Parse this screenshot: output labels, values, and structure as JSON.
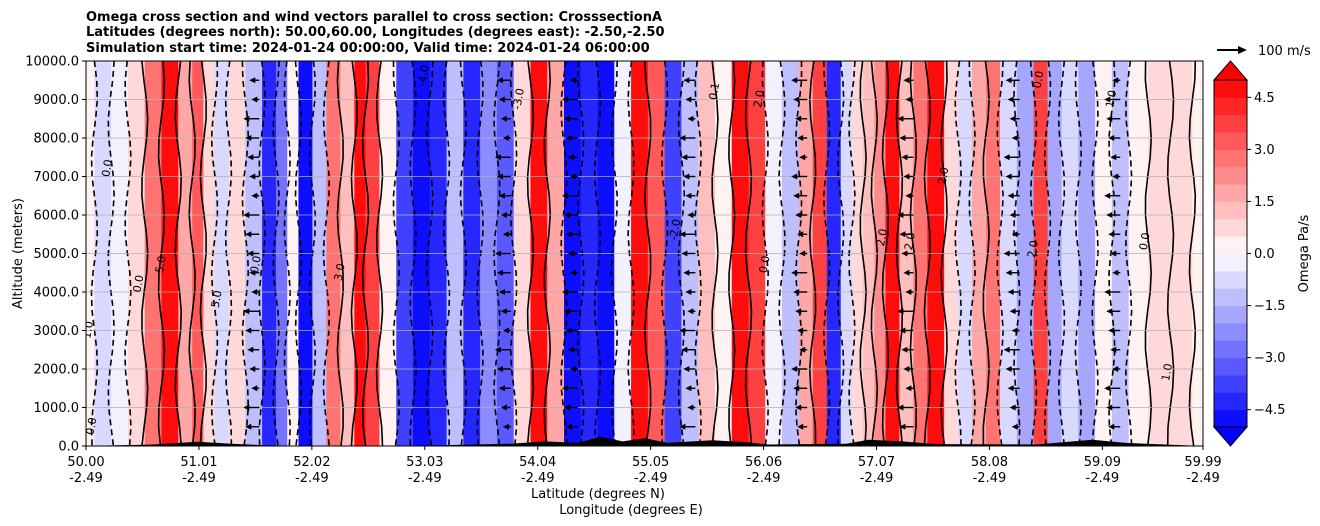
{
  "chart_data": {
    "type": "heatmap",
    "title_lines": [
      "Omega cross section and wind vectors parallel to cross section: CrosssectionA",
      "Latitudes (degrees north): 50.00,60.00, Longitudes (degrees east): -2.50,-2.50",
      "Simulation start time: 2024-01-24 00:00:00, Valid time: 2024-01-24 06:00:00"
    ],
    "ylabel": "Altitude (meters)",
    "xlabel_lines": [
      "Latitude (degrees N)",
      "Longitude (degrees E)"
    ],
    "ylim": [
      0,
      10000
    ],
    "yticks": [
      0,
      1000,
      2000,
      3000,
      4000,
      5000,
      6000,
      7000,
      8000,
      9000,
      10000
    ],
    "ytick_labels": [
      "0.0",
      "1000.0",
      "2000.0",
      "3000.0",
      "4000.0",
      "5000.0",
      "6000.0",
      "7000.0",
      "8000.0",
      "9000.0",
      "10000.0"
    ],
    "xlim": [
      50.0,
      59.99
    ],
    "xticks": [
      50.0,
      51.01,
      52.02,
      53.03,
      54.04,
      55.05,
      56.06,
      57.07,
      58.08,
      59.09,
      59.99
    ],
    "xtick_labels_lat": [
      "50.00",
      "51.01",
      "52.02",
      "53.03",
      "54.04",
      "55.05",
      "56.06",
      "57.07",
      "58.08",
      "59.09",
      "59.99"
    ],
    "xtick_labels_lon": [
      "-2.49",
      "-2.49",
      "-2.49",
      "-2.49",
      "-2.49",
      "-2.49",
      "-2.49",
      "-2.49",
      "-2.49",
      "-2.49",
      "-2.49"
    ],
    "grid": "horizontal",
    "colorbar": {
      "label": "Omega Pa/s",
      "range": [
        -5,
        5
      ],
      "extend": "both",
      "ticks": [
        4.5,
        3.0,
        1.5,
        0.0,
        -1.5,
        -3.0,
        -4.5
      ],
      "tick_labels": [
        "4.5",
        "3.0",
        "1.5",
        "0.0",
        "−1.5",
        "−3.0",
        "−4.5"
      ],
      "colormap": "bwr",
      "low_color": "#0000ff",
      "mid_color": "#ffffff",
      "high_color": "#ff0000"
    },
    "quiver_key": {
      "label": "100 m/s"
    },
    "omega_bands": [
      {
        "x": 50.0,
        "v": 0.3
      },
      {
        "x": 50.15,
        "v": -0.8
      },
      {
        "x": 50.3,
        "v": -0.3
      },
      {
        "x": 50.45,
        "v": 0.8
      },
      {
        "x": 50.6,
        "v": 2.5
      },
      {
        "x": 50.75,
        "v": 5.0
      },
      {
        "x": 50.9,
        "v": 1.5
      },
      {
        "x": 51.0,
        "v": 3.2
      },
      {
        "x": 51.1,
        "v": 0.5
      },
      {
        "x": 51.2,
        "v": -0.8
      },
      {
        "x": 51.35,
        "v": 0.8
      },
      {
        "x": 51.5,
        "v": -1.5
      },
      {
        "x": 51.65,
        "v": -4.5
      },
      {
        "x": 51.75,
        "v": -3.0
      },
      {
        "x": 51.85,
        "v": 0.4
      },
      {
        "x": 51.95,
        "v": -5.0
      },
      {
        "x": 52.1,
        "v": -1.5
      },
      {
        "x": 52.2,
        "v": 2.5
      },
      {
        "x": 52.35,
        "v": 1.0
      },
      {
        "x": 52.45,
        "v": 5.0
      },
      {
        "x": 52.55,
        "v": 3.5
      },
      {
        "x": 52.7,
        "v": 0.3
      },
      {
        "x": 52.85,
        "v": -3.8
      },
      {
        "x": 53.0,
        "v": -5.0
      },
      {
        "x": 53.15,
        "v": -4.2
      },
      {
        "x": 53.3,
        "v": -1.5
      },
      {
        "x": 53.45,
        "v": -4.5
      },
      {
        "x": 53.6,
        "v": -2.5
      },
      {
        "x": 53.75,
        "v": -3.5
      },
      {
        "x": 53.9,
        "v": 0.5
      },
      {
        "x": 54.05,
        "v": 5.0
      },
      {
        "x": 54.2,
        "v": 1.5
      },
      {
        "x": 54.35,
        "v": -5.0
      },
      {
        "x": 54.5,
        "v": -4.5
      },
      {
        "x": 54.65,
        "v": -5.0
      },
      {
        "x": 54.8,
        "v": -0.5
      },
      {
        "x": 54.95,
        "v": 4.8
      },
      {
        "x": 55.1,
        "v": 3.0
      },
      {
        "x": 55.25,
        "v": -4.0
      },
      {
        "x": 55.4,
        "v": -1.5
      },
      {
        "x": 55.55,
        "v": 1.0
      },
      {
        "x": 55.7,
        "v": 0.3
      },
      {
        "x": 55.85,
        "v": 5.0
      },
      {
        "x": 56.0,
        "v": 3.8
      },
      {
        "x": 56.15,
        "v": -0.5
      },
      {
        "x": 56.3,
        "v": -1.5
      },
      {
        "x": 56.45,
        "v": 1.8
      },
      {
        "x": 56.55,
        "v": 3.5
      },
      {
        "x": 56.7,
        "v": -4.5
      },
      {
        "x": 56.8,
        "v": -1.0
      },
      {
        "x": 56.9,
        "v": 0.6
      },
      {
        "x": 57.0,
        "v": 1.2
      },
      {
        "x": 57.1,
        "v": 2.0
      },
      {
        "x": 57.2,
        "v": 4.8
      },
      {
        "x": 57.35,
        "v": 1.0
      },
      {
        "x": 57.45,
        "v": 2.5
      },
      {
        "x": 57.6,
        "v": 5.0
      },
      {
        "x": 57.75,
        "v": 0.5
      },
      {
        "x": 57.85,
        "v": -0.8
      },
      {
        "x": 58.0,
        "v": 1.5
      },
      {
        "x": 58.1,
        "v": 2.5
      },
      {
        "x": 58.25,
        "v": -0.6
      },
      {
        "x": 58.4,
        "v": -1.8
      },
      {
        "x": 58.55,
        "v": 3.5
      },
      {
        "x": 58.65,
        "v": -2.0
      },
      {
        "x": 58.8,
        "v": -0.6
      },
      {
        "x": 58.95,
        "v": -1.8
      },
      {
        "x": 59.1,
        "v": 0.3
      },
      {
        "x": 59.25,
        "v": -1.2
      },
      {
        "x": 59.4,
        "v": 0.4
      },
      {
        "x": 59.6,
        "v": 0.6
      },
      {
        "x": 59.8,
        "v": 0.8
      },
      {
        "x": 59.99,
        "v": 0.4
      }
    ],
    "contour_labels": [
      {
        "x": 50.08,
        "y": 500,
        "text": "0.0"
      },
      {
        "x": 50.05,
        "y": 3000,
        "text": "1.0"
      },
      {
        "x": 50.22,
        "y": 7200,
        "text": "0.0"
      },
      {
        "x": 50.5,
        "y": 4200,
        "text": "0.0"
      },
      {
        "x": 50.7,
        "y": 4700,
        "text": "5.0"
      },
      {
        "x": 51.2,
        "y": 3800,
        "text": "5.0"
      },
      {
        "x": 51.55,
        "y": 4700,
        "text": "0.0"
      },
      {
        "x": 52.3,
        "y": 4500,
        "text": "3.0"
      },
      {
        "x": 53.05,
        "y": 9600,
        "text": "-4.0"
      },
      {
        "x": 53.9,
        "y": 9000,
        "text": "-3.0"
      },
      {
        "x": 55.3,
        "y": 5600,
        "text": "-2.0"
      },
      {
        "x": 55.65,
        "y": 9200,
        "text": "0.1"
      },
      {
        "x": 56.05,
        "y": 9000,
        "text": "2.0"
      },
      {
        "x": 56.1,
        "y": 4700,
        "text": "0.0"
      },
      {
        "x": 57.15,
        "y": 5400,
        "text": "2.0"
      },
      {
        "x": 57.4,
        "y": 5300,
        "text": "2.0"
      },
      {
        "x": 57.7,
        "y": 7000,
        "text": "2.0"
      },
      {
        "x": 58.5,
        "y": 5100,
        "text": "2.0"
      },
      {
        "x": 58.55,
        "y": 9500,
        "text": "0.0"
      },
      {
        "x": 59.2,
        "y": 9000,
        "text": "1.0"
      },
      {
        "x": 59.5,
        "y": 5300,
        "text": "0.0"
      },
      {
        "x": 59.7,
        "y": 1900,
        "text": "1.0"
      }
    ]
  }
}
